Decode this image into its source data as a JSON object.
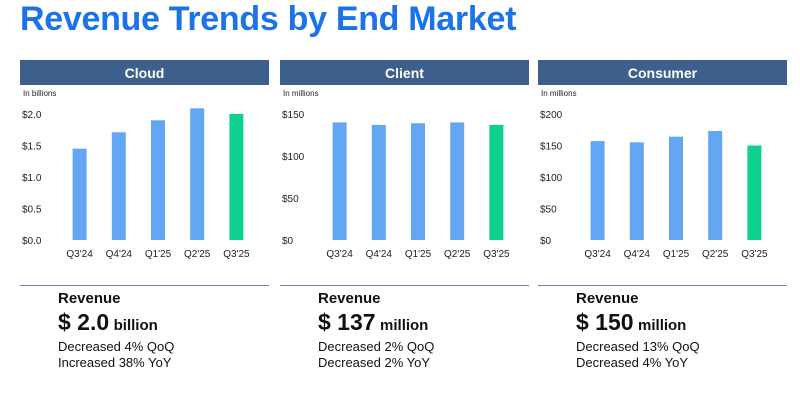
{
  "title": "Revenue Trends by End Market",
  "colors": {
    "bar": "#62a6f4",
    "highlight": "#0fd18f",
    "header": "#3d5f8c",
    "title": "#1a73e8"
  },
  "chart_data": [
    {
      "type": "bar",
      "title": "Cloud",
      "unit_note": "In billions",
      "categories": [
        "Q3'24",
        "Q4'24",
        "Q1'25",
        "Q2'25",
        "Q3'25"
      ],
      "values": [
        1.45,
        1.71,
        1.9,
        2.09,
        2.0
      ],
      "highlight_index": 4,
      "ylim": [
        0,
        2.0
      ],
      "yticks": [
        0,
        0.5,
        1.0,
        1.5,
        2.0
      ],
      "ytick_labels": [
        "$0.0",
        "$0.5",
        "$1.0",
        "$1.5",
        "$2.0"
      ],
      "grid": false
    },
    {
      "type": "bar",
      "title": "Client",
      "unit_note": "In millions",
      "categories": [
        "Q3'24",
        "Q4'24",
        "Q1'25",
        "Q2'25",
        "Q3'25"
      ],
      "values": [
        140,
        137,
        139,
        140,
        137
      ],
      "highlight_index": 4,
      "ylim": [
        0,
        150
      ],
      "yticks": [
        0,
        50,
        100,
        150
      ],
      "ytick_labels": [
        "$0",
        "$50",
        "$100",
        "$150"
      ],
      "grid": false
    },
    {
      "type": "bar",
      "title": "Consumer",
      "unit_note": "In millions",
      "categories": [
        "Q3'24",
        "Q4'24",
        "Q1'25",
        "Q2'25",
        "Q3'25"
      ],
      "values": [
        157,
        155,
        164,
        173,
        150
      ],
      "highlight_index": 4,
      "ylim": [
        0,
        200
      ],
      "yticks": [
        0,
        50,
        100,
        150,
        200
      ],
      "ytick_labels": [
        "$0",
        "$50",
        "$100",
        "$150",
        "$200"
      ],
      "grid": false
    }
  ],
  "summaries": [
    {
      "label": "Revenue",
      "value": "$ 2.0",
      "unit": "billion",
      "line1": "Decreased 4% QoQ",
      "line2": "Increased 38% YoY"
    },
    {
      "label": "Revenue",
      "value": "$ 137",
      "unit": "million",
      "line1": "Decreased 2% QoQ",
      "line2": "Decreased 2% YoY"
    },
    {
      "label": "Revenue",
      "value": "$ 150",
      "unit": "million",
      "line1": "Decreased 13% QoQ",
      "line2": "Decreased 4% YoY"
    }
  ]
}
